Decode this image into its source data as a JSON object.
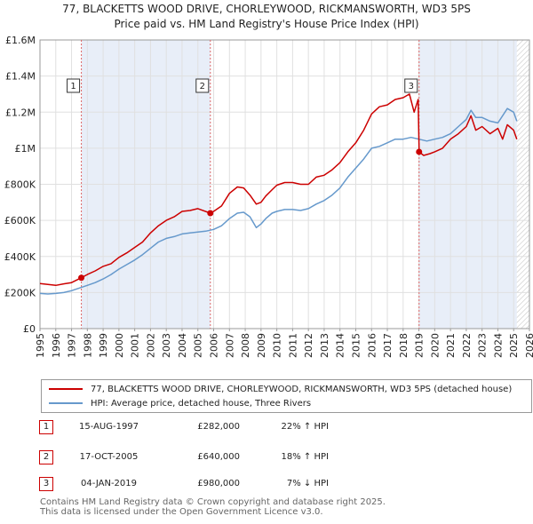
{
  "chart_data": {
    "type": "line",
    "title": "77, BLACKETTS WOOD DRIVE, CHORLEYWOOD, RICKMANSWORTH, WD3 5PS",
    "subtitle": "Price paid vs. HM Land Registry's House Price Index (HPI)",
    "xlim": [
      1995,
      2026
    ],
    "ylim": [
      0,
      1600000
    ],
    "x_ticks": [
      "1995",
      "1996",
      "1997",
      "1998",
      "1999",
      "2000",
      "2001",
      "2002",
      "2003",
      "2004",
      "2005",
      "2006",
      "2007",
      "2008",
      "2009",
      "2010",
      "2011",
      "2012",
      "2013",
      "2014",
      "2015",
      "2016",
      "2017",
      "2018",
      "2019",
      "2020",
      "2021",
      "2022",
      "2023",
      "2024",
      "2025",
      "2026"
    ],
    "y_ticks": [
      {
        "value": 0,
        "label": "£0"
      },
      {
        "value": 200000,
        "label": "£200K"
      },
      {
        "value": 400000,
        "label": "£400K"
      },
      {
        "value": 600000,
        "label": "£600K"
      },
      {
        "value": 800000,
        "label": "£800K"
      },
      {
        "value": 1000000,
        "label": "£1M"
      },
      {
        "value": 1200000,
        "label": "£1.2M"
      },
      {
        "value": 1400000,
        "label": "£1.4M"
      },
      {
        "value": 1600000,
        "label": "£1.6M"
      }
    ],
    "shaded_ranges": [
      [
        1997.62,
        2005.79
      ],
      [
        2019.01,
        2025.2
      ]
    ],
    "hatched_from": 2025.2,
    "series": [
      {
        "name": "77, BLACKETTS WOOD DRIVE, CHORLEYWOOD, RICKMANSWORTH, WD3 5PS (detached house)",
        "color": "#cc0000",
        "x": [
          1995.0,
          1995.5,
          1996.0,
          1996.5,
          1997.0,
          1997.62,
          1998.0,
          1998.5,
          1999.0,
          1999.5,
          2000.0,
          2000.5,
          2001.0,
          2001.5,
          2002.0,
          2002.5,
          2003.0,
          2003.5,
          2004.0,
          2004.5,
          2005.0,
          2005.79,
          2006.0,
          2006.5,
          2007.0,
          2007.5,
          2007.9,
          2008.3,
          2008.7,
          2009.0,
          2009.3,
          2009.7,
          2010.0,
          2010.5,
          2011.0,
          2011.5,
          2012.0,
          2012.5,
          2013.0,
          2013.5,
          2014.0,
          2014.5,
          2015.0,
          2015.5,
          2016.0,
          2016.5,
          2017.0,
          2017.5,
          2018.0,
          2018.4,
          2018.7,
          2018.95,
          2019.01,
          2019.3,
          2019.7,
          2020.0,
          2020.5,
          2021.0,
          2021.5,
          2022.0,
          2022.3,
          2022.6,
          2023.0,
          2023.5,
          2024.0,
          2024.3,
          2024.6,
          2025.0,
          2025.2
        ],
        "values": [
          250000,
          245000,
          240000,
          248000,
          255000,
          282000,
          300000,
          320000,
          345000,
          360000,
          395000,
          420000,
          450000,
          480000,
          530000,
          570000,
          600000,
          620000,
          650000,
          655000,
          665000,
          640000,
          650000,
          680000,
          750000,
          785000,
          780000,
          740000,
          690000,
          700000,
          735000,
          770000,
          795000,
          810000,
          810000,
          800000,
          800000,
          840000,
          850000,
          880000,
          920000,
          980000,
          1030000,
          1100000,
          1190000,
          1230000,
          1240000,
          1270000,
          1280000,
          1300000,
          1200000,
          1270000,
          980000,
          960000,
          970000,
          980000,
          1000000,
          1050000,
          1080000,
          1120000,
          1180000,
          1100000,
          1120000,
          1080000,
          1110000,
          1050000,
          1130000,
          1100000,
          1050000
        ]
      },
      {
        "name": "HPI: Average price, detached house, Three Rivers",
        "color": "#6699cc",
        "x": [
          1995.0,
          1995.5,
          1996.0,
          1996.5,
          1997.0,
          1997.5,
          1998.0,
          1998.5,
          1999.0,
          1999.5,
          2000.0,
          2000.5,
          2001.0,
          2001.5,
          2002.0,
          2002.5,
          2003.0,
          2003.5,
          2004.0,
          2004.5,
          2005.0,
          2005.5,
          2006.0,
          2006.5,
          2007.0,
          2007.5,
          2007.9,
          2008.3,
          2008.7,
          2009.0,
          2009.3,
          2009.7,
          2010.0,
          2010.5,
          2011.0,
          2011.5,
          2012.0,
          2012.5,
          2013.0,
          2013.5,
          2014.0,
          2014.5,
          2015.0,
          2015.5,
          2016.0,
          2016.5,
          2017.0,
          2017.5,
          2018.0,
          2018.5,
          2019.0,
          2019.5,
          2020.0,
          2020.5,
          2021.0,
          2021.5,
          2022.0,
          2022.3,
          2022.6,
          2023.0,
          2023.5,
          2024.0,
          2024.3,
          2024.6,
          2025.0,
          2025.2
        ],
        "values": [
          195000,
          192000,
          195000,
          200000,
          210000,
          225000,
          240000,
          255000,
          275000,
          300000,
          330000,
          355000,
          380000,
          410000,
          445000,
          480000,
          500000,
          510000,
          525000,
          530000,
          535000,
          540000,
          550000,
          570000,
          610000,
          640000,
          645000,
          620000,
          560000,
          580000,
          610000,
          640000,
          650000,
          660000,
          660000,
          655000,
          665000,
          690000,
          710000,
          740000,
          780000,
          840000,
          890000,
          940000,
          1000000,
          1010000,
          1030000,
          1050000,
          1050000,
          1060000,
          1050000,
          1040000,
          1050000,
          1060000,
          1080000,
          1120000,
          1160000,
          1210000,
          1170000,
          1170000,
          1150000,
          1140000,
          1180000,
          1220000,
          1200000,
          1150000
        ]
      }
    ],
    "markers": [
      {
        "label": "1",
        "x": 1997.62,
        "value": 282000
      },
      {
        "label": "2",
        "x": 2005.79,
        "value": 640000
      },
      {
        "label": "3",
        "x": 2019.01,
        "value": 980000
      }
    ]
  },
  "legend": {
    "items": [
      {
        "label": "77, BLACKETTS WOOD DRIVE, CHORLEYWOOD, RICKMANSWORTH, WD3 5PS (detached house)",
        "color": "#cc0000"
      },
      {
        "label": "HPI: Average price, detached house, Three Rivers",
        "color": "#6699cc"
      }
    ]
  },
  "sales": [
    {
      "num": "1",
      "date": "15-AUG-1997",
      "price": "£282,000",
      "hpi": "22% ↑ HPI"
    },
    {
      "num": "2",
      "date": "17-OCT-2005",
      "price": "£640,000",
      "hpi": "18% ↑ HPI"
    },
    {
      "num": "3",
      "date": "04-JAN-2019",
      "price": "£980,000",
      "hpi": "7% ↓ HPI"
    }
  ],
  "footer": {
    "line1": "Contains HM Land Registry data © Crown copyright and database right 2025.",
    "line2": "This data is licensed under the Open Government Licence v3.0."
  }
}
